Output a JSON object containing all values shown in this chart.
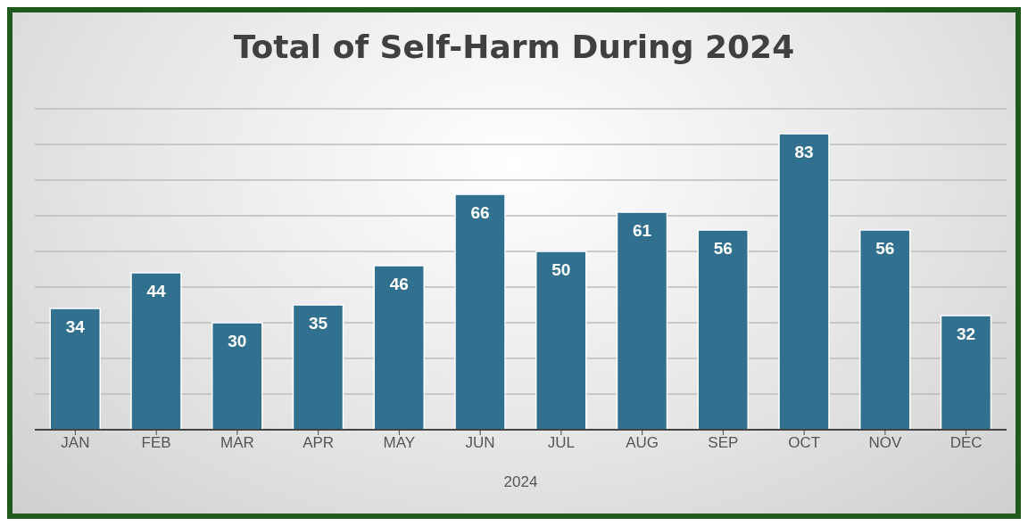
{
  "chart_data": {
    "type": "bar",
    "title": "Total of Self-Harm During 2024",
    "xlabel": "2024",
    "categories": [
      "JAN",
      "FEB",
      "MAR",
      "APR",
      "MAY",
      "JUN",
      "JUL",
      "AUG",
      "SEP",
      "OCT",
      "NOV",
      "DEC"
    ],
    "values": [
      34,
      44,
      30,
      35,
      46,
      66,
      50,
      61,
      56,
      83,
      56,
      32
    ],
    "color": "#31718f",
    "ylim": [
      0,
      90
    ],
    "yticks": [
      {
        "value": 0,
        "label": null
      },
      {
        "value": 10,
        "label": null
      },
      {
        "value": 20,
        "label": null
      },
      {
        "value": 30,
        "label": null
      },
      {
        "value": 40,
        "label": null
      },
      {
        "value": 50,
        "label": null
      },
      {
        "value": 60,
        "label": null
      },
      {
        "value": 70,
        "label": null
      },
      {
        "value": 80,
        "label": null
      },
      {
        "value": 90,
        "label": null
      }
    ],
    "grid": "y",
    "tick_labels": "x",
    "data_labels": true,
    "legend": false
  }
}
